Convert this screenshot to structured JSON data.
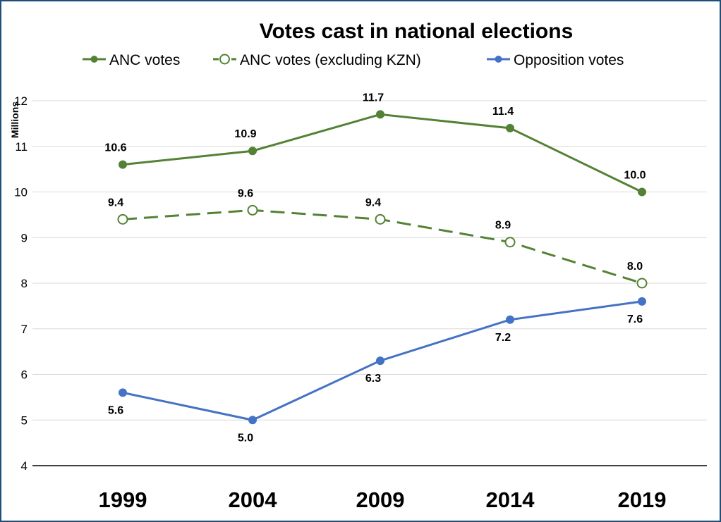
{
  "chart_data": {
    "type": "line",
    "title": "Votes cast in national elections",
    "ylabel": "Millions",
    "xlabel": "",
    "categories": [
      "1999",
      "2004",
      "2009",
      "2014",
      "2019"
    ],
    "ylim": [
      4,
      12
    ],
    "yticks": [
      4,
      5,
      6,
      7,
      8,
      9,
      10,
      11,
      12
    ],
    "grid": true,
    "legend_position": "top",
    "series": [
      {
        "name": "ANC votes",
        "values": [
          10.6,
          10.9,
          11.7,
          11.4,
          10.0
        ],
        "labels": [
          "10.6",
          "10.9",
          "11.7",
          "11.4",
          "10.0"
        ],
        "color": "#548235",
        "line_style": "solid",
        "marker": "filled-circle",
        "label_position": "above"
      },
      {
        "name": "ANC votes (excluding KZN)",
        "values": [
          9.4,
          9.6,
          9.4,
          8.9,
          8.0
        ],
        "labels": [
          "9.4",
          "9.6",
          "9.4",
          "8.9",
          "8.0"
        ],
        "color": "#548235",
        "line_style": "dashed",
        "marker": "open-circle",
        "label_position": "above"
      },
      {
        "name": "Opposition votes",
        "values": [
          5.6,
          5.0,
          6.3,
          7.2,
          7.6
        ],
        "labels": [
          "5.6",
          "5.0",
          "6.3",
          "7.2",
          "7.6"
        ],
        "color": "#4472c4",
        "line_style": "solid",
        "marker": "filled-circle",
        "label_position": "below"
      }
    ]
  }
}
